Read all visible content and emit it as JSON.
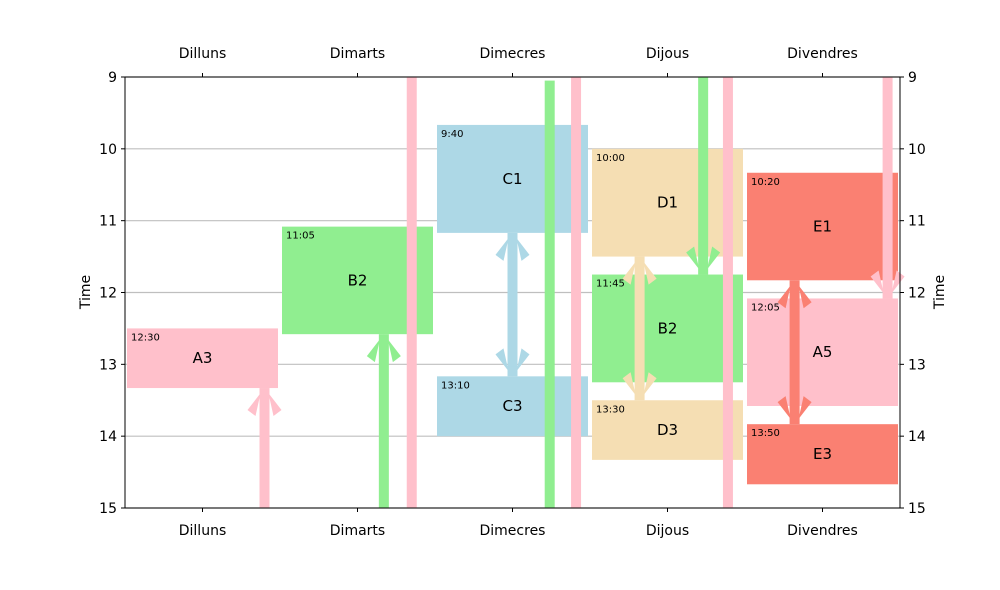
{
  "chart_data": {
    "type": "timetable",
    "days": [
      "Dilluns",
      "Dimarts",
      "Dimecres",
      "Dijous",
      "Divendres"
    ],
    "ylabel": "Time",
    "ylim": [
      9,
      15
    ],
    "yticks": [
      "9",
      "10",
      "11",
      "12",
      "13",
      "14",
      "15"
    ],
    "grid": "horizontal",
    "colors": {
      "pink": "#ffc0cb",
      "green": "#90ee90",
      "lightblue": "#add8e6",
      "wheat": "#f5deb3",
      "salmon": "#fa8072"
    },
    "events": [
      {
        "label": "A3",
        "time": "12:30",
        "day": "Dilluns",
        "start": 12.5,
        "end": 13.33,
        "color": "pink"
      },
      {
        "label": "B2",
        "time": "11:05",
        "day": "Dimarts",
        "start": 11.083,
        "end": 12.58,
        "color": "green"
      },
      {
        "label": "C1",
        "time": "9:40",
        "day": "Dimecres",
        "start": 9.667,
        "end": 11.17,
        "color": "lightblue"
      },
      {
        "label": "C3",
        "time": "13:10",
        "day": "Dimecres",
        "start": 13.167,
        "end": 14.0,
        "color": "lightblue"
      },
      {
        "label": "D1",
        "time": "10:00",
        "day": "Dijous",
        "start": 10.0,
        "end": 11.5,
        "color": "wheat"
      },
      {
        "label": "B2",
        "time": "11:45",
        "day": "Dijous",
        "start": 11.75,
        "end": 13.25,
        "color": "green"
      },
      {
        "label": "D3",
        "time": "13:30",
        "day": "Dijous",
        "start": 13.5,
        "end": 14.33,
        "color": "wheat"
      },
      {
        "label": "E1",
        "time": "10:20",
        "day": "Divendres",
        "start": 10.333,
        "end": 11.83,
        "color": "salmon"
      },
      {
        "label": "A5",
        "time": "12:05",
        "day": "Divendres",
        "start": 12.083,
        "end": 13.58,
        "color": "pink"
      },
      {
        "label": "E3",
        "time": "13:50",
        "day": "Divendres",
        "start": 13.833,
        "end": 14.67,
        "color": "salmon"
      }
    ],
    "arrows": [
      {
        "day": "Dilluns",
        "offset": 0.4,
        "from": 15.0,
        "to": 13.33,
        "color": "pink",
        "head": "end"
      },
      {
        "day": "Dimarts",
        "offset": 0.17,
        "from": 15.0,
        "to": 12.58,
        "color": "green",
        "head": "end"
      },
      {
        "day": "Dimarts",
        "offset": 0.35,
        "from": 15.0,
        "to": 9.0,
        "color": "pink",
        "head": "none"
      },
      {
        "day": "Dimecres",
        "offset": 0.0,
        "from": 11.17,
        "to": 13.167,
        "color": "lightblue",
        "head": "both"
      },
      {
        "day": "Dimecres",
        "offset": 0.24,
        "from": 15.0,
        "to": 9.05,
        "color": "green",
        "head": "none"
      },
      {
        "day": "Dimecres",
        "offset": 0.41,
        "from": 15.0,
        "to": 9.0,
        "color": "pink",
        "head": "none"
      },
      {
        "day": "Dijous",
        "offset": -0.18,
        "from": 11.5,
        "to": 13.5,
        "color": "wheat",
        "head": "both"
      },
      {
        "day": "Dijous",
        "offset": 0.23,
        "from": 9.0,
        "to": 11.75,
        "color": "green",
        "head": "end"
      },
      {
        "day": "Dijous",
        "offset": 0.39,
        "from": 15.0,
        "to": 9.0,
        "color": "pink",
        "head": "none"
      },
      {
        "day": "Divendres",
        "offset": -0.18,
        "from": 11.83,
        "to": 13.833,
        "color": "salmon",
        "head": "both"
      },
      {
        "day": "Divendres",
        "offset": 0.42,
        "from": 9.0,
        "to": 12.083,
        "color": "pink",
        "head": "end"
      }
    ]
  }
}
